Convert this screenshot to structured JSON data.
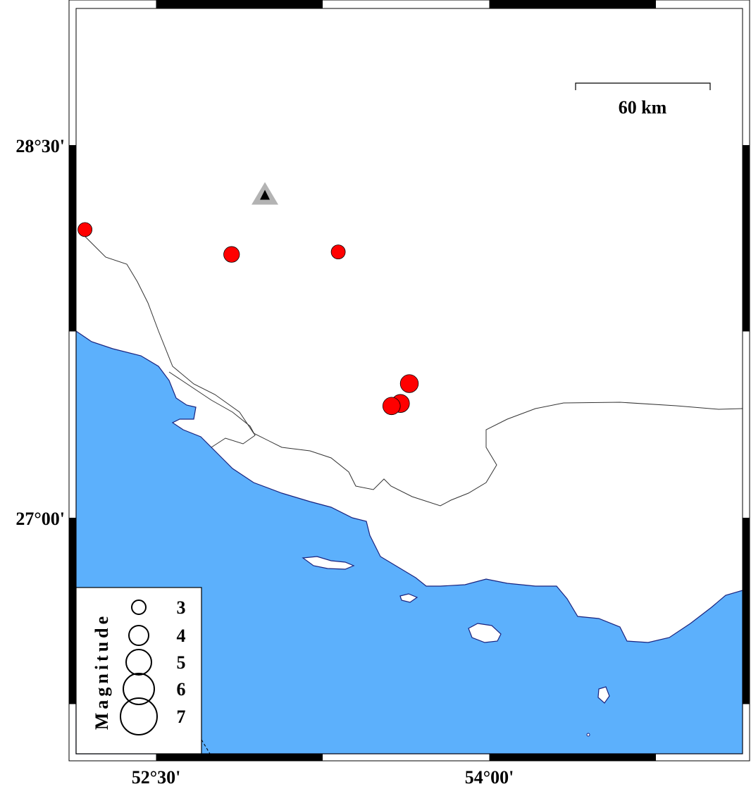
{
  "map": {
    "region": {
      "lon_min": 52.14,
      "lon_max": 55.14,
      "lat_min": 26.05,
      "lat_max": 29.05
    },
    "frame_tick_interval_minutes": 45,
    "colors": {
      "sea": "#5cb0fc",
      "land": "#ffffff",
      "event": "#ff0000",
      "station_outer": "#b3b3b3",
      "station_inner": "#000000",
      "coast": "#1a237e",
      "border": "#333333"
    },
    "lon_labels": [
      {
        "lon": 52.5,
        "text": "52°30'"
      },
      {
        "lon": 54.0,
        "text": "54°00'"
      }
    ],
    "lat_labels": [
      {
        "lat": 28.5,
        "text": "28°30'"
      },
      {
        "lat": 27.0,
        "text": "27°00'"
      }
    ],
    "scale_bar": {
      "label": "60 km",
      "length_km": 60
    },
    "station": {
      "lon": 52.99,
      "lat": 28.3,
      "icon": "triangle"
    },
    "events": [
      {
        "lon": 52.18,
        "lat": 28.16,
        "mag": 3.0
      },
      {
        "lon": 52.84,
        "lat": 28.06,
        "mag": 3.3
      },
      {
        "lon": 53.32,
        "lat": 28.07,
        "mag": 3.0
      },
      {
        "lon": 53.64,
        "lat": 27.54,
        "mag": 3.7
      },
      {
        "lon": 53.6,
        "lat": 27.46,
        "mag": 3.7
      },
      {
        "lon": 53.56,
        "lat": 27.45,
        "mag": 3.6
      }
    ]
  },
  "legend": {
    "title": "Magnitude",
    "entries": [
      {
        "mag": 3,
        "label": "3"
      },
      {
        "mag": 4,
        "label": "4"
      },
      {
        "mag": 5,
        "label": "5"
      },
      {
        "mag": 6,
        "label": "6"
      },
      {
        "mag": 7,
        "label": "7"
      }
    ]
  }
}
